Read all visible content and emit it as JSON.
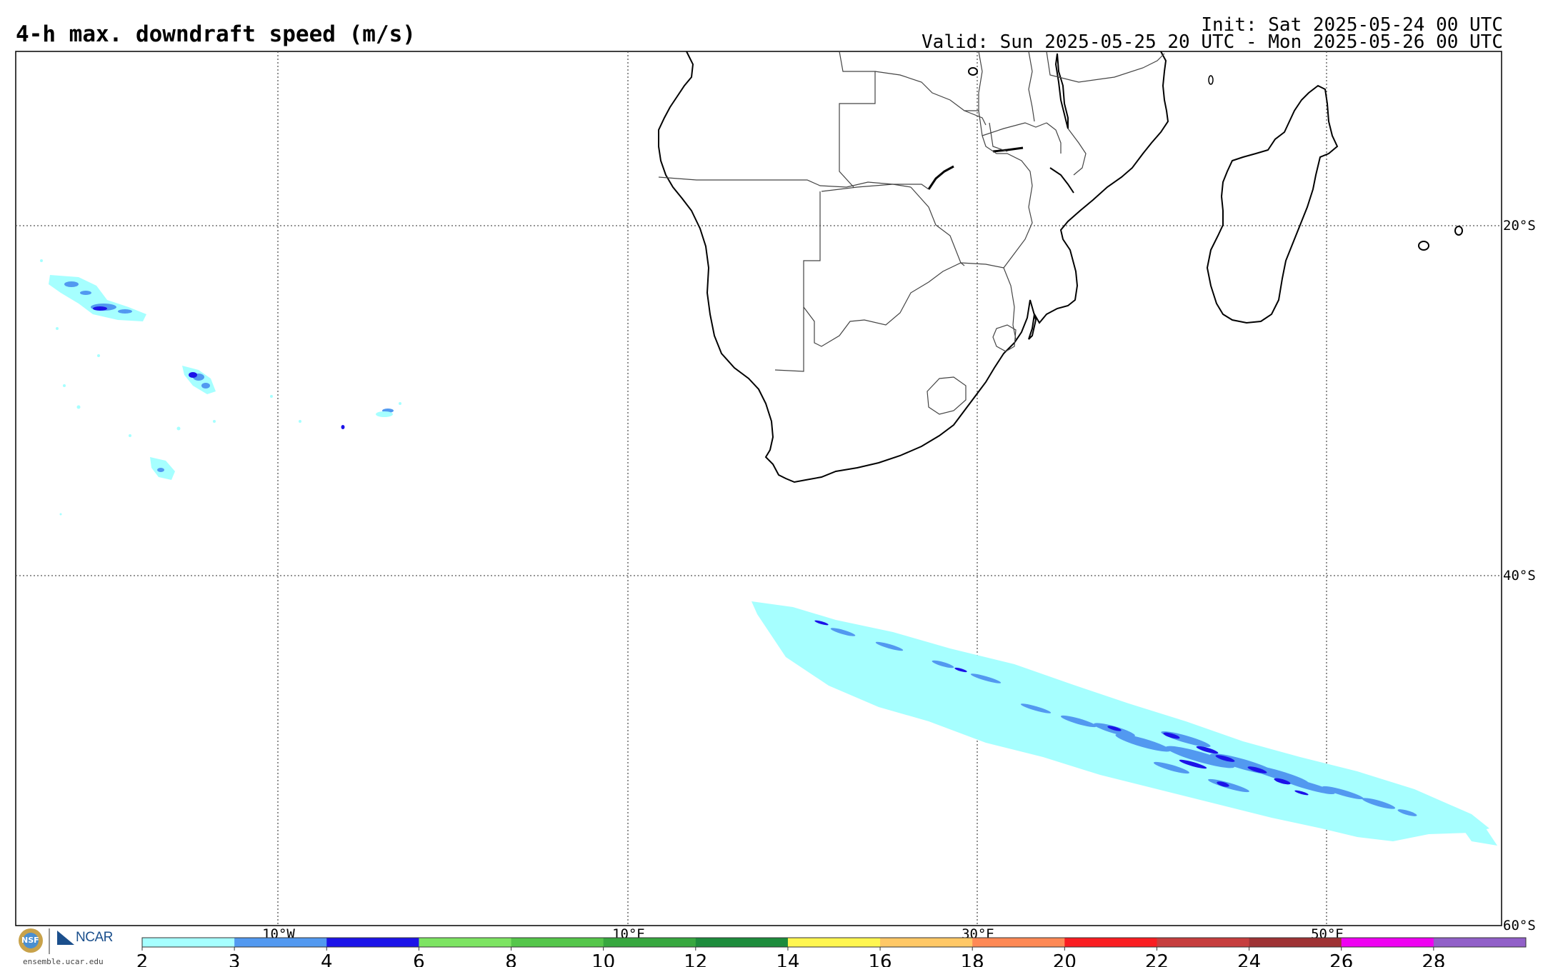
{
  "header": {
    "title": "4-h max. downdraft speed (m/s)",
    "init": "Init: Sat 2025-05-24 00 UTC",
    "valid": "Valid: Sun 2025-05-25 20 UTC - Mon 2025-05-26 00 UTC"
  },
  "map": {
    "longitude_labels": [
      "10°W",
      "10°E",
      "30°E",
      "50°E"
    ],
    "latitude_labels": [
      "20°S",
      "40°S",
      "60°S"
    ],
    "grid_style": "dotted"
  },
  "colorbar": {
    "ticks": [
      "2",
      "3",
      "4",
      "6",
      "8",
      "10",
      "12",
      "14",
      "16",
      "18",
      "20",
      "22",
      "24",
      "26",
      "28"
    ],
    "colors": [
      "#a6ffff",
      "#5299f0",
      "#1c13e8",
      "#7de462",
      "#55c64a",
      "#37a73f",
      "#1d8c3c",
      "#fff650",
      "#ffc866",
      "#fe8955",
      "#f91d21",
      "#c63e3e",
      "#9e3234",
      "#ef01f1",
      "#9160c8"
    ]
  },
  "logos": {
    "nsf_text": "NSF",
    "ncar_text": "NCAR",
    "url": "ensemble.ucar.edu"
  }
}
